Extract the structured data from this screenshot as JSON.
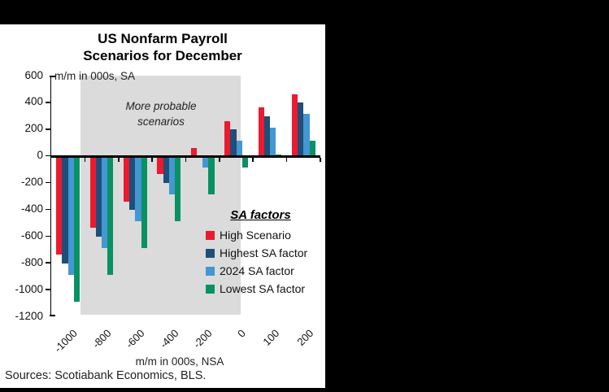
{
  "source_note": "Sources: Scotiabank Economics, BLS.",
  "chart_data": {
    "type": "bar",
    "title": "US Nonfarm Payroll Scenarios for December",
    "title_lines": [
      "US Nonfarm Payroll",
      "Scenarios for December"
    ],
    "ylabel": "m/m in 000s, SA",
    "xlabel": "m/m in 000s, NSA",
    "ylim": [
      -1200,
      600
    ],
    "ytick_step": 200,
    "y_ticks": [
      600,
      400,
      200,
      0,
      -200,
      -400,
      -600,
      -800,
      -1000,
      -1200
    ],
    "categories": [
      -1000,
      -800,
      -600,
      -400,
      -200,
      0,
      100,
      200
    ],
    "series": [
      {
        "name": "High Scenario",
        "color": "#EC1A2E",
        "values": [
          -735,
          -535,
          -340,
          -135,
          65,
          265,
          365,
          465
        ]
      },
      {
        "name": "Highest SA factor",
        "color": "#1F4E79",
        "values": [
          -800,
          -600,
          -400,
          -200,
          0,
          200,
          300,
          400
        ]
      },
      {
        "name": "2024 SA factor",
        "color": "#4397D2",
        "values": [
          -885,
          -685,
          -485,
          -285,
          -85,
          115,
          215,
          315
        ]
      },
      {
        "name": "Lowest SA factor",
        "color": "#0A9163",
        "values": [
          -1085,
          -885,
          -685,
          -485,
          -285,
          -85,
          15,
          115
        ]
      }
    ],
    "legend_title": "SA factors",
    "legend_position": "inside lower right",
    "annotation_lines": [
      "More probable",
      "scenarios"
    ],
    "shaded_region": {
      "label": "More probable scenarios",
      "color": "#DBDBDB",
      "covers": "categories -800 through 0"
    },
    "grid": false
  }
}
